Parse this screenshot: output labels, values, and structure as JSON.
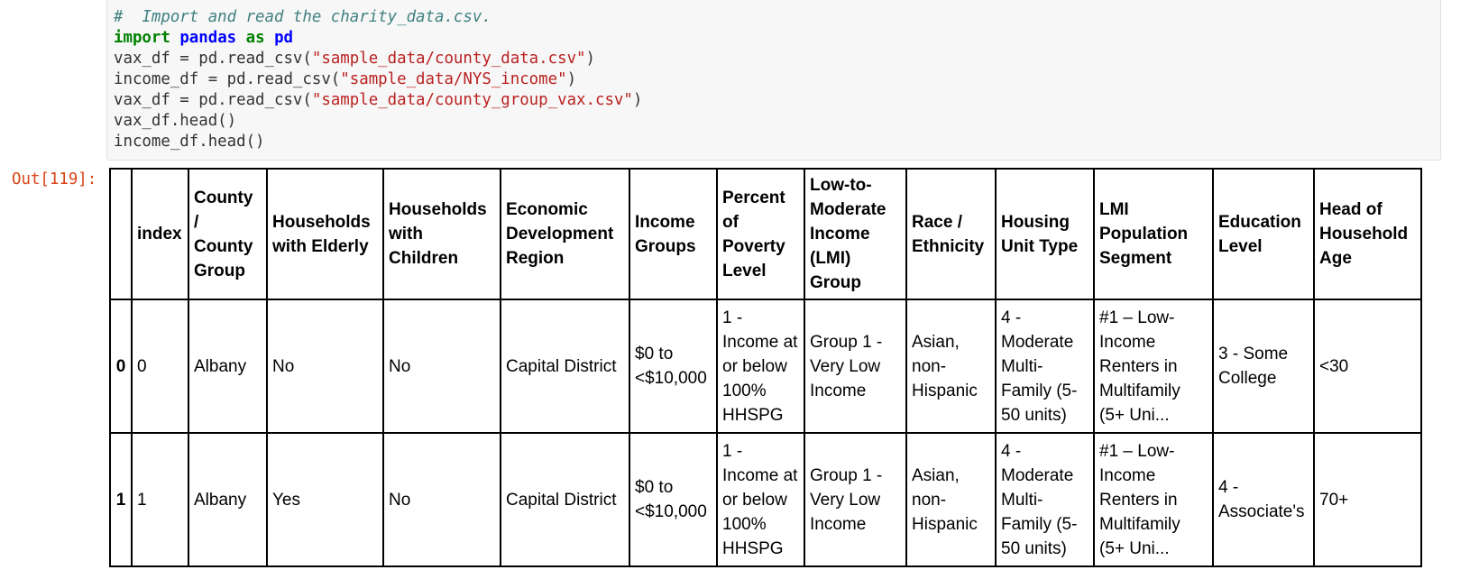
{
  "code": {
    "comment": "#  Import and read the charity_data.csv.",
    "line2": {
      "import_kw": "import",
      "module": "pandas",
      "as_kw": "as",
      "alias": "pd"
    },
    "line3": {
      "pre": "vax_df = pd.read_csv(",
      "str": "\"sample_data/county_data.csv\"",
      "post": ")"
    },
    "line4": {
      "pre": "income_df = pd.read_csv(",
      "str": "\"sample_data/NYS_income\"",
      "post": ")"
    },
    "line5": {
      "pre": "vax_df = pd.read_csv(",
      "str": "\"sample_data/county_group_vax.csv\"",
      "post": ")"
    },
    "line6": "vax_df.head()",
    "line7": "income_df.head()"
  },
  "output": {
    "prompt": "Out[119]:",
    "columns": [
      "",
      "index",
      "County / County Group",
      "Households with Elderly",
      "Households with Children",
      "Economic Development Region",
      "Income Groups",
      "Percent of Poverty Level",
      "Low-to-Moderate Income (LMI) Group",
      "Race / Ethnicity",
      "Housing Unit Type",
      "LMI Population Segment",
      "Education Level",
      "Head of Household Age"
    ],
    "rows": [
      [
        "0",
        "0",
        "Albany",
        "No",
        "No",
        "Capital District",
        "$0 to <$10,000",
        "1 - Income at or below 100% HHSPG",
        "Group 1 - Very Low Income",
        "Asian, non-Hispanic",
        "4 - Moderate Multi-Family (5-50 units)",
        "#1 – Low-Income Renters in Multifamily (5+ Uni...",
        "3 - Some College",
        "<30"
      ],
      [
        "1",
        "1",
        "Albany",
        "Yes",
        "No",
        "Capital District",
        "$0 to <$10,000",
        "1 - Income at or below 100% HHSPG",
        "Group 1 - Very Low Income",
        "Asian, non-Hispanic",
        "4 - Moderate Multi-Family (5-50 units)",
        "#1 – Low-Income Renters in Multifamily (5+ Uni...",
        "4 - Associate's",
        "70+"
      ]
    ]
  }
}
